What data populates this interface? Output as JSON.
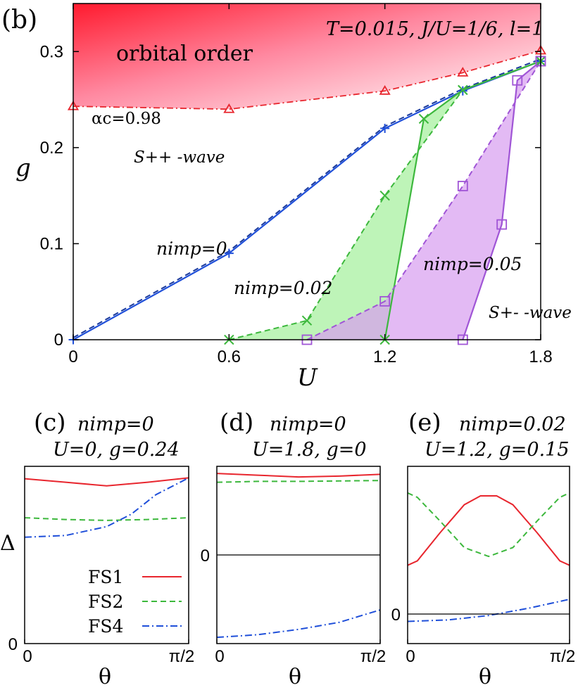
{
  "chart_data": [
    {
      "panel": "(b)",
      "type": "line",
      "xlabel": "U",
      "ylabel": "g",
      "xlim": [
        0,
        1.8
      ],
      "ylim": [
        0,
        0.35
      ],
      "xticks": [
        "0",
        "0.6",
        "1.2",
        "1.8"
      ],
      "yticks": [
        "0",
        "0.1",
        "0.2",
        "0.3"
      ],
      "params": "T=0.015, J/U=1/6, l=1",
      "labels": {
        "orbital": "orbital order",
        "alpha": "αc=0.98",
        "spp": "S++ -wave",
        "spm": "S+- -wave",
        "n0": "nimp=0",
        "n002": "nimp=0.02",
        "n005": "nimp=0.05"
      },
      "series": [
        {
          "name": "orbital boundary (αc=0.98)",
          "color": "#e8262e",
          "marker": "triangle",
          "x": [
            0,
            0.6,
            1.2,
            1.5,
            1.8
          ],
          "y": [
            0.243,
            0.24,
            0.259,
            0.278,
            0.301
          ]
        },
        {
          "name": "nimp=0 (solid)",
          "color": "#1f4fd9",
          "marker": "plus",
          "x": [
            0,
            0.6,
            1.2,
            1.5,
            1.8
          ],
          "y": [
            0.0,
            0.09,
            0.22,
            0.259,
            0.29
          ]
        },
        {
          "name": "nimp=0.02 lower (dashed)",
          "color": "#3db83d",
          "marker": "cross",
          "x": [
            0.6,
            0.9,
            1.2,
            1.5,
            1.8
          ],
          "y": [
            0.0,
            0.02,
            0.15,
            0.26,
            0.29
          ]
        },
        {
          "name": "nimp=0.02 upper (solid)",
          "color": "#3db83d",
          "marker": "cross",
          "x": [
            1.2,
            1.35,
            1.5,
            1.8
          ],
          "y": [
            0.0,
            0.23,
            0.26,
            0.29
          ]
        },
        {
          "name": "nimp=0.05 lower (dashed)",
          "color": "#a055d6",
          "marker": "square",
          "x": [
            0.9,
            1.2,
            1.5,
            1.8
          ],
          "y": [
            0.0,
            0.04,
            0.16,
            0.29
          ]
        },
        {
          "name": "nimp=0.05 upper (solid)",
          "color": "#a055d6",
          "marker": "square",
          "x": [
            1.5,
            1.65,
            1.71,
            1.8
          ],
          "y": [
            0.0,
            0.12,
            0.27,
            0.29
          ]
        }
      ]
    },
    {
      "panel": "(c)",
      "type": "line",
      "title_line1": "nimp=0",
      "title_line2": "U=0, g=0.24",
      "xlabel": "θ",
      "ylabel": "Δ",
      "xticks": [
        "0",
        "π/2"
      ],
      "yticks": [
        "0"
      ],
      "ylim": [
        0,
        1
      ],
      "legend": [
        "FS1",
        "FS2",
        "FS4"
      ],
      "series": [
        {
          "name": "FS1",
          "x": [
            0,
            0.25,
            0.5,
            0.75,
            1
          ],
          "y": [
            0.93,
            0.91,
            0.89,
            0.91,
            0.935
          ]
        },
        {
          "name": "FS2",
          "x": [
            0,
            0.25,
            0.5,
            0.75,
            1
          ],
          "y": [
            0.71,
            0.7,
            0.695,
            0.7,
            0.71
          ]
        },
        {
          "name": "FS4",
          "x": [
            0,
            0.25,
            0.5,
            0.65,
            0.8,
            1
          ],
          "y": [
            0.6,
            0.61,
            0.66,
            0.73,
            0.84,
            0.935
          ]
        }
      ]
    },
    {
      "panel": "(d)",
      "type": "line",
      "title_line1": "nimp=0",
      "title_line2": "U=1.8, g=0",
      "xlabel": "θ",
      "xticks": [
        "0",
        "π/2"
      ],
      "yticks": [
        "0"
      ],
      "ylim": [
        -1,
        1
      ],
      "series": [
        {
          "name": "FS1",
          "x": [
            0,
            0.25,
            0.5,
            0.75,
            1
          ],
          "y": [
            0.92,
            0.9,
            0.88,
            0.89,
            0.91
          ]
        },
        {
          "name": "FS2",
          "x": [
            0,
            0.25,
            0.5,
            0.75,
            1
          ],
          "y": [
            0.82,
            0.83,
            0.83,
            0.835,
            0.84
          ]
        },
        {
          "name": "FS4",
          "x": [
            0,
            0.25,
            0.5,
            0.75,
            1
          ],
          "y": [
            -0.93,
            -0.9,
            -0.84,
            -0.76,
            -0.62
          ]
        }
      ]
    },
    {
      "panel": "(e)",
      "type": "line",
      "title_line1": "nimp=0.02",
      "title_line2": "U=1.2, g=0.15",
      "xlabel": "θ",
      "xticks": [
        "0",
        "π/2"
      ],
      "yticks": [
        "0"
      ],
      "ylim": [
        -0.2,
        1.0
      ],
      "series": [
        {
          "name": "FS1",
          "x": [
            0,
            0.06,
            0.2,
            0.35,
            0.45,
            0.55,
            0.65,
            0.8,
            0.94,
            1
          ],
          "y": [
            0.33,
            0.36,
            0.55,
            0.74,
            0.8,
            0.8,
            0.74,
            0.55,
            0.36,
            0.33
          ]
        },
        {
          "name": "FS2",
          "x": [
            0,
            0.06,
            0.2,
            0.35,
            0.5,
            0.65,
            0.8,
            0.94,
            1
          ],
          "y": [
            0.82,
            0.79,
            0.63,
            0.45,
            0.39,
            0.45,
            0.63,
            0.79,
            0.82
          ]
        },
        {
          "name": "FS4",
          "x": [
            0,
            0.25,
            0.5,
            0.75,
            1
          ],
          "y": [
            -0.05,
            -0.04,
            -0.01,
            0.04,
            0.1
          ]
        }
      ]
    }
  ],
  "colors": {
    "fs1": "#e8262e",
    "fs2": "#3db83d",
    "fs4": "#1f4fd9",
    "purple": "#a055d6"
  },
  "panels": {
    "b": "(b)",
    "c": "(c)",
    "d": "(d)",
    "e": "(e)"
  }
}
